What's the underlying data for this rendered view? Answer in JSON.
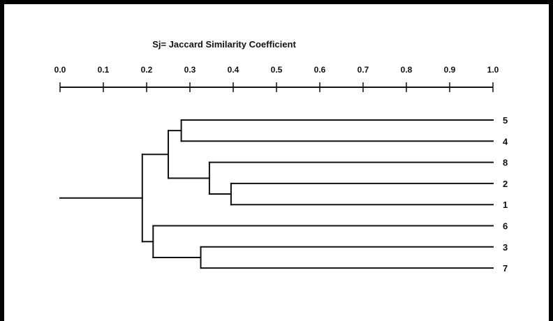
{
  "title": "Sj= Jaccard Similarity Coefficient",
  "axis": {
    "min": 0.0,
    "max": 1.0,
    "ticks": [
      "0.0",
      "0.1",
      "0.2",
      "0.3",
      "0.4",
      "0.5",
      "0.6",
      "0.7",
      "0.8",
      "0.9",
      "1.0"
    ]
  },
  "dendrogram": {
    "leaves": [
      "5",
      "4",
      "8",
      "2",
      "1",
      "6",
      "3",
      "7"
    ],
    "merges": [
      {
        "a": "5",
        "b": "4",
        "similarity": 0.28
      },
      {
        "a": "2",
        "b": "1",
        "similarity": 0.395
      },
      {
        "a": "8",
        "b": "2+1",
        "similarity": 0.345
      },
      {
        "a": "5+4",
        "b": "8+2+1",
        "similarity": 0.25
      },
      {
        "a": "3",
        "b": "7",
        "similarity": 0.325
      },
      {
        "a": "6",
        "b": "3+7",
        "similarity": 0.215
      },
      {
        "a": "5+4+8+2+1",
        "b": "6+3+7",
        "similarity": 0.19
      }
    ],
    "root_similarity": 0.0
  }
}
